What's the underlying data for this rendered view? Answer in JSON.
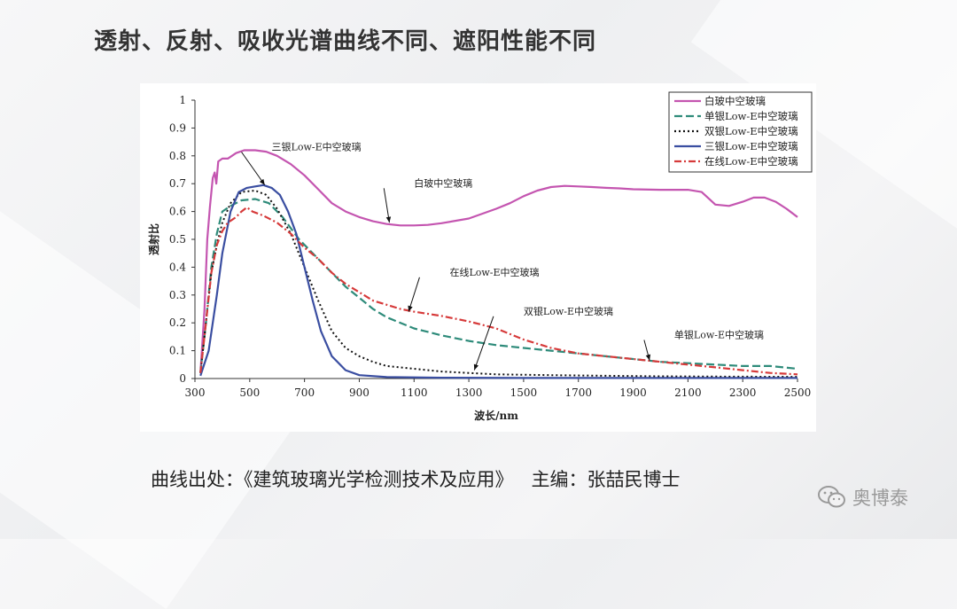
{
  "title": "透射、反射、吸收光谱曲线不同、遮阳性能不同",
  "source": {
    "label": "曲线出处：",
    "book": "《建筑玻璃光学检测技术及应用》",
    "editor": "主编：张喆民博士"
  },
  "watermark": {
    "text": "奥博泰",
    "icon": "wechat-icon"
  },
  "chart_data": {
    "type": "line",
    "xlabel": "波长/nm",
    "ylabel": "透射比",
    "xlim": [
      300,
      2500
    ],
    "ylim": [
      0,
      1
    ],
    "x_ticks": [
      300,
      500,
      700,
      900,
      1100,
      1300,
      1500,
      1700,
      1900,
      2100,
      2300,
      2500
    ],
    "y_ticks": [
      "0",
      "0.1",
      "0.2",
      "0.3",
      "0.4",
      "0.5",
      "0.6",
      "0.7",
      "0.8",
      "0.9",
      "1"
    ],
    "grid": false,
    "legend_position": "top-right",
    "series": [
      {
        "name": "白玻中空玻璃",
        "color": "#c455b0",
        "dash": "solid",
        "points": [
          [
            320,
            0.02
          ],
          [
            335,
            0.25
          ],
          [
            345,
            0.5
          ],
          [
            355,
            0.62
          ],
          [
            365,
            0.72
          ],
          [
            372,
            0.74
          ],
          [
            378,
            0.7
          ],
          [
            385,
            0.78
          ],
          [
            400,
            0.79
          ],
          [
            420,
            0.79
          ],
          [
            450,
            0.81
          ],
          [
            480,
            0.82
          ],
          [
            520,
            0.82
          ],
          [
            560,
            0.815
          ],
          [
            600,
            0.8
          ],
          [
            650,
            0.77
          ],
          [
            700,
            0.73
          ],
          [
            750,
            0.68
          ],
          [
            800,
            0.63
          ],
          [
            850,
            0.6
          ],
          [
            900,
            0.58
          ],
          [
            950,
            0.565
          ],
          [
            1000,
            0.555
          ],
          [
            1050,
            0.55
          ],
          [
            1100,
            0.55
          ],
          [
            1150,
            0.552
          ],
          [
            1200,
            0.558
          ],
          [
            1300,
            0.575
          ],
          [
            1400,
            0.61
          ],
          [
            1450,
            0.63
          ],
          [
            1500,
            0.655
          ],
          [
            1550,
            0.675
          ],
          [
            1600,
            0.688
          ],
          [
            1650,
            0.692
          ],
          [
            1700,
            0.69
          ],
          [
            1750,
            0.688
          ],
          [
            1800,
            0.685
          ],
          [
            1850,
            0.683
          ],
          [
            1900,
            0.68
          ],
          [
            2000,
            0.678
          ],
          [
            2050,
            0.678
          ],
          [
            2100,
            0.678
          ],
          [
            2150,
            0.67
          ],
          [
            2200,
            0.625
          ],
          [
            2250,
            0.62
          ],
          [
            2300,
            0.635
          ],
          [
            2340,
            0.65
          ],
          [
            2380,
            0.65
          ],
          [
            2420,
            0.635
          ],
          [
            2460,
            0.61
          ],
          [
            2500,
            0.58
          ]
        ]
      },
      {
        "name": "单银Low-E中空玻璃",
        "color": "#2e8b7a",
        "dash": "dash",
        "points": [
          [
            320,
            0.02
          ],
          [
            340,
            0.2
          ],
          [
            360,
            0.4
          ],
          [
            380,
            0.52
          ],
          [
            400,
            0.6
          ],
          [
            430,
            0.62
          ],
          [
            470,
            0.64
          ],
          [
            520,
            0.645
          ],
          [
            570,
            0.63
          ],
          [
            620,
            0.58
          ],
          [
            680,
            0.5
          ],
          [
            750,
            0.43
          ],
          [
            800,
            0.38
          ],
          [
            850,
            0.33
          ],
          [
            900,
            0.29
          ],
          [
            950,
            0.25
          ],
          [
            1000,
            0.22
          ],
          [
            1100,
            0.18
          ],
          [
            1200,
            0.155
          ],
          [
            1300,
            0.135
          ],
          [
            1400,
            0.12
          ],
          [
            1500,
            0.11
          ],
          [
            1600,
            0.1
          ],
          [
            1700,
            0.09
          ],
          [
            1800,
            0.08
          ],
          [
            1900,
            0.07
          ],
          [
            2000,
            0.06
          ],
          [
            2100,
            0.055
          ],
          [
            2200,
            0.05
          ],
          [
            2300,
            0.045
          ],
          [
            2400,
            0.045
          ],
          [
            2450,
            0.04
          ],
          [
            2500,
            0.035
          ]
        ]
      },
      {
        "name": "双银Low-E中空玻璃",
        "color": "#111111",
        "dash": "dot",
        "points": [
          [
            320,
            0.02
          ],
          [
            340,
            0.2
          ],
          [
            360,
            0.38
          ],
          [
            380,
            0.48
          ],
          [
            400,
            0.56
          ],
          [
            430,
            0.63
          ],
          [
            470,
            0.67
          ],
          [
            520,
            0.675
          ],
          [
            560,
            0.66
          ],
          [
            600,
            0.61
          ],
          [
            650,
            0.52
          ],
          [
            700,
            0.4
          ],
          [
            750,
            0.28
          ],
          [
            800,
            0.17
          ],
          [
            850,
            0.11
          ],
          [
            900,
            0.08
          ],
          [
            950,
            0.06
          ],
          [
            1000,
            0.045
          ],
          [
            1100,
            0.035
          ],
          [
            1200,
            0.025
          ],
          [
            1300,
            0.02
          ],
          [
            1400,
            0.015
          ],
          [
            1600,
            0.012
          ],
          [
            1800,
            0.01
          ],
          [
            2000,
            0.008
          ],
          [
            2200,
            0.007
          ],
          [
            2500,
            0.006
          ]
        ]
      },
      {
        "name": "三银Low-E中空玻璃",
        "color": "#3a4ea1",
        "dash": "solid",
        "points": [
          [
            320,
            0.01
          ],
          [
            350,
            0.1
          ],
          [
            380,
            0.3
          ],
          [
            400,
            0.45
          ],
          [
            430,
            0.6
          ],
          [
            460,
            0.67
          ],
          [
            490,
            0.685
          ],
          [
            520,
            0.69
          ],
          [
            550,
            0.695
          ],
          [
            580,
            0.685
          ],
          [
            610,
            0.66
          ],
          [
            640,
            0.6
          ],
          [
            670,
            0.52
          ],
          [
            700,
            0.4
          ],
          [
            730,
            0.28
          ],
          [
            760,
            0.17
          ],
          [
            800,
            0.08
          ],
          [
            850,
            0.03
          ],
          [
            900,
            0.012
          ],
          [
            1000,
            0.005
          ],
          [
            1200,
            0.003
          ],
          [
            1500,
            0.002
          ],
          [
            2000,
            0.002
          ],
          [
            2500,
            0.002
          ]
        ]
      },
      {
        "name": "在线Low-E中空玻璃",
        "color": "#d63a3a",
        "dash": "dashdot",
        "points": [
          [
            320,
            0.02
          ],
          [
            340,
            0.2
          ],
          [
            360,
            0.38
          ],
          [
            380,
            0.48
          ],
          [
            400,
            0.53
          ],
          [
            420,
            0.56
          ],
          [
            450,
            0.58
          ],
          [
            470,
            0.6
          ],
          [
            490,
            0.615
          ],
          [
            510,
            0.6
          ],
          [
            550,
            0.585
          ],
          [
            600,
            0.56
          ],
          [
            650,
            0.52
          ],
          [
            700,
            0.47
          ],
          [
            750,
            0.43
          ],
          [
            800,
            0.38
          ],
          [
            850,
            0.34
          ],
          [
            900,
            0.31
          ],
          [
            950,
            0.28
          ],
          [
            1000,
            0.265
          ],
          [
            1050,
            0.25
          ],
          [
            1100,
            0.24
          ],
          [
            1200,
            0.225
          ],
          [
            1300,
            0.205
          ],
          [
            1400,
            0.18
          ],
          [
            1500,
            0.14
          ],
          [
            1600,
            0.11
          ],
          [
            1700,
            0.09
          ],
          [
            1800,
            0.08
          ],
          [
            1900,
            0.07
          ],
          [
            2000,
            0.06
          ],
          [
            2100,
            0.05
          ],
          [
            2200,
            0.04
          ],
          [
            2300,
            0.03
          ],
          [
            2400,
            0.02
          ],
          [
            2500,
            0.015
          ]
        ]
      }
    ],
    "annotations": [
      {
        "text": "三银Low-E中空玻璃",
        "x": 555,
        "y": 0.695,
        "text_x": 580,
        "text_y": 0.82
      },
      {
        "text": "白玻中空玻璃",
        "x": 1010,
        "y": 0.56,
        "text_x": 1100,
        "text_y": 0.69
      },
      {
        "text": "在线Low-E中空玻璃",
        "x": 1080,
        "y": 0.24,
        "text_x": 1230,
        "text_y": 0.37
      },
      {
        "text": "双银Low-E中空玻璃",
        "x": 1320,
        "y": 0.03,
        "text_x": 1500,
        "text_y": 0.23
      },
      {
        "text": "单银Low-E中空玻璃",
        "x": 1960,
        "y": 0.065,
        "text_x": 2050,
        "text_y": 0.145
      }
    ]
  }
}
